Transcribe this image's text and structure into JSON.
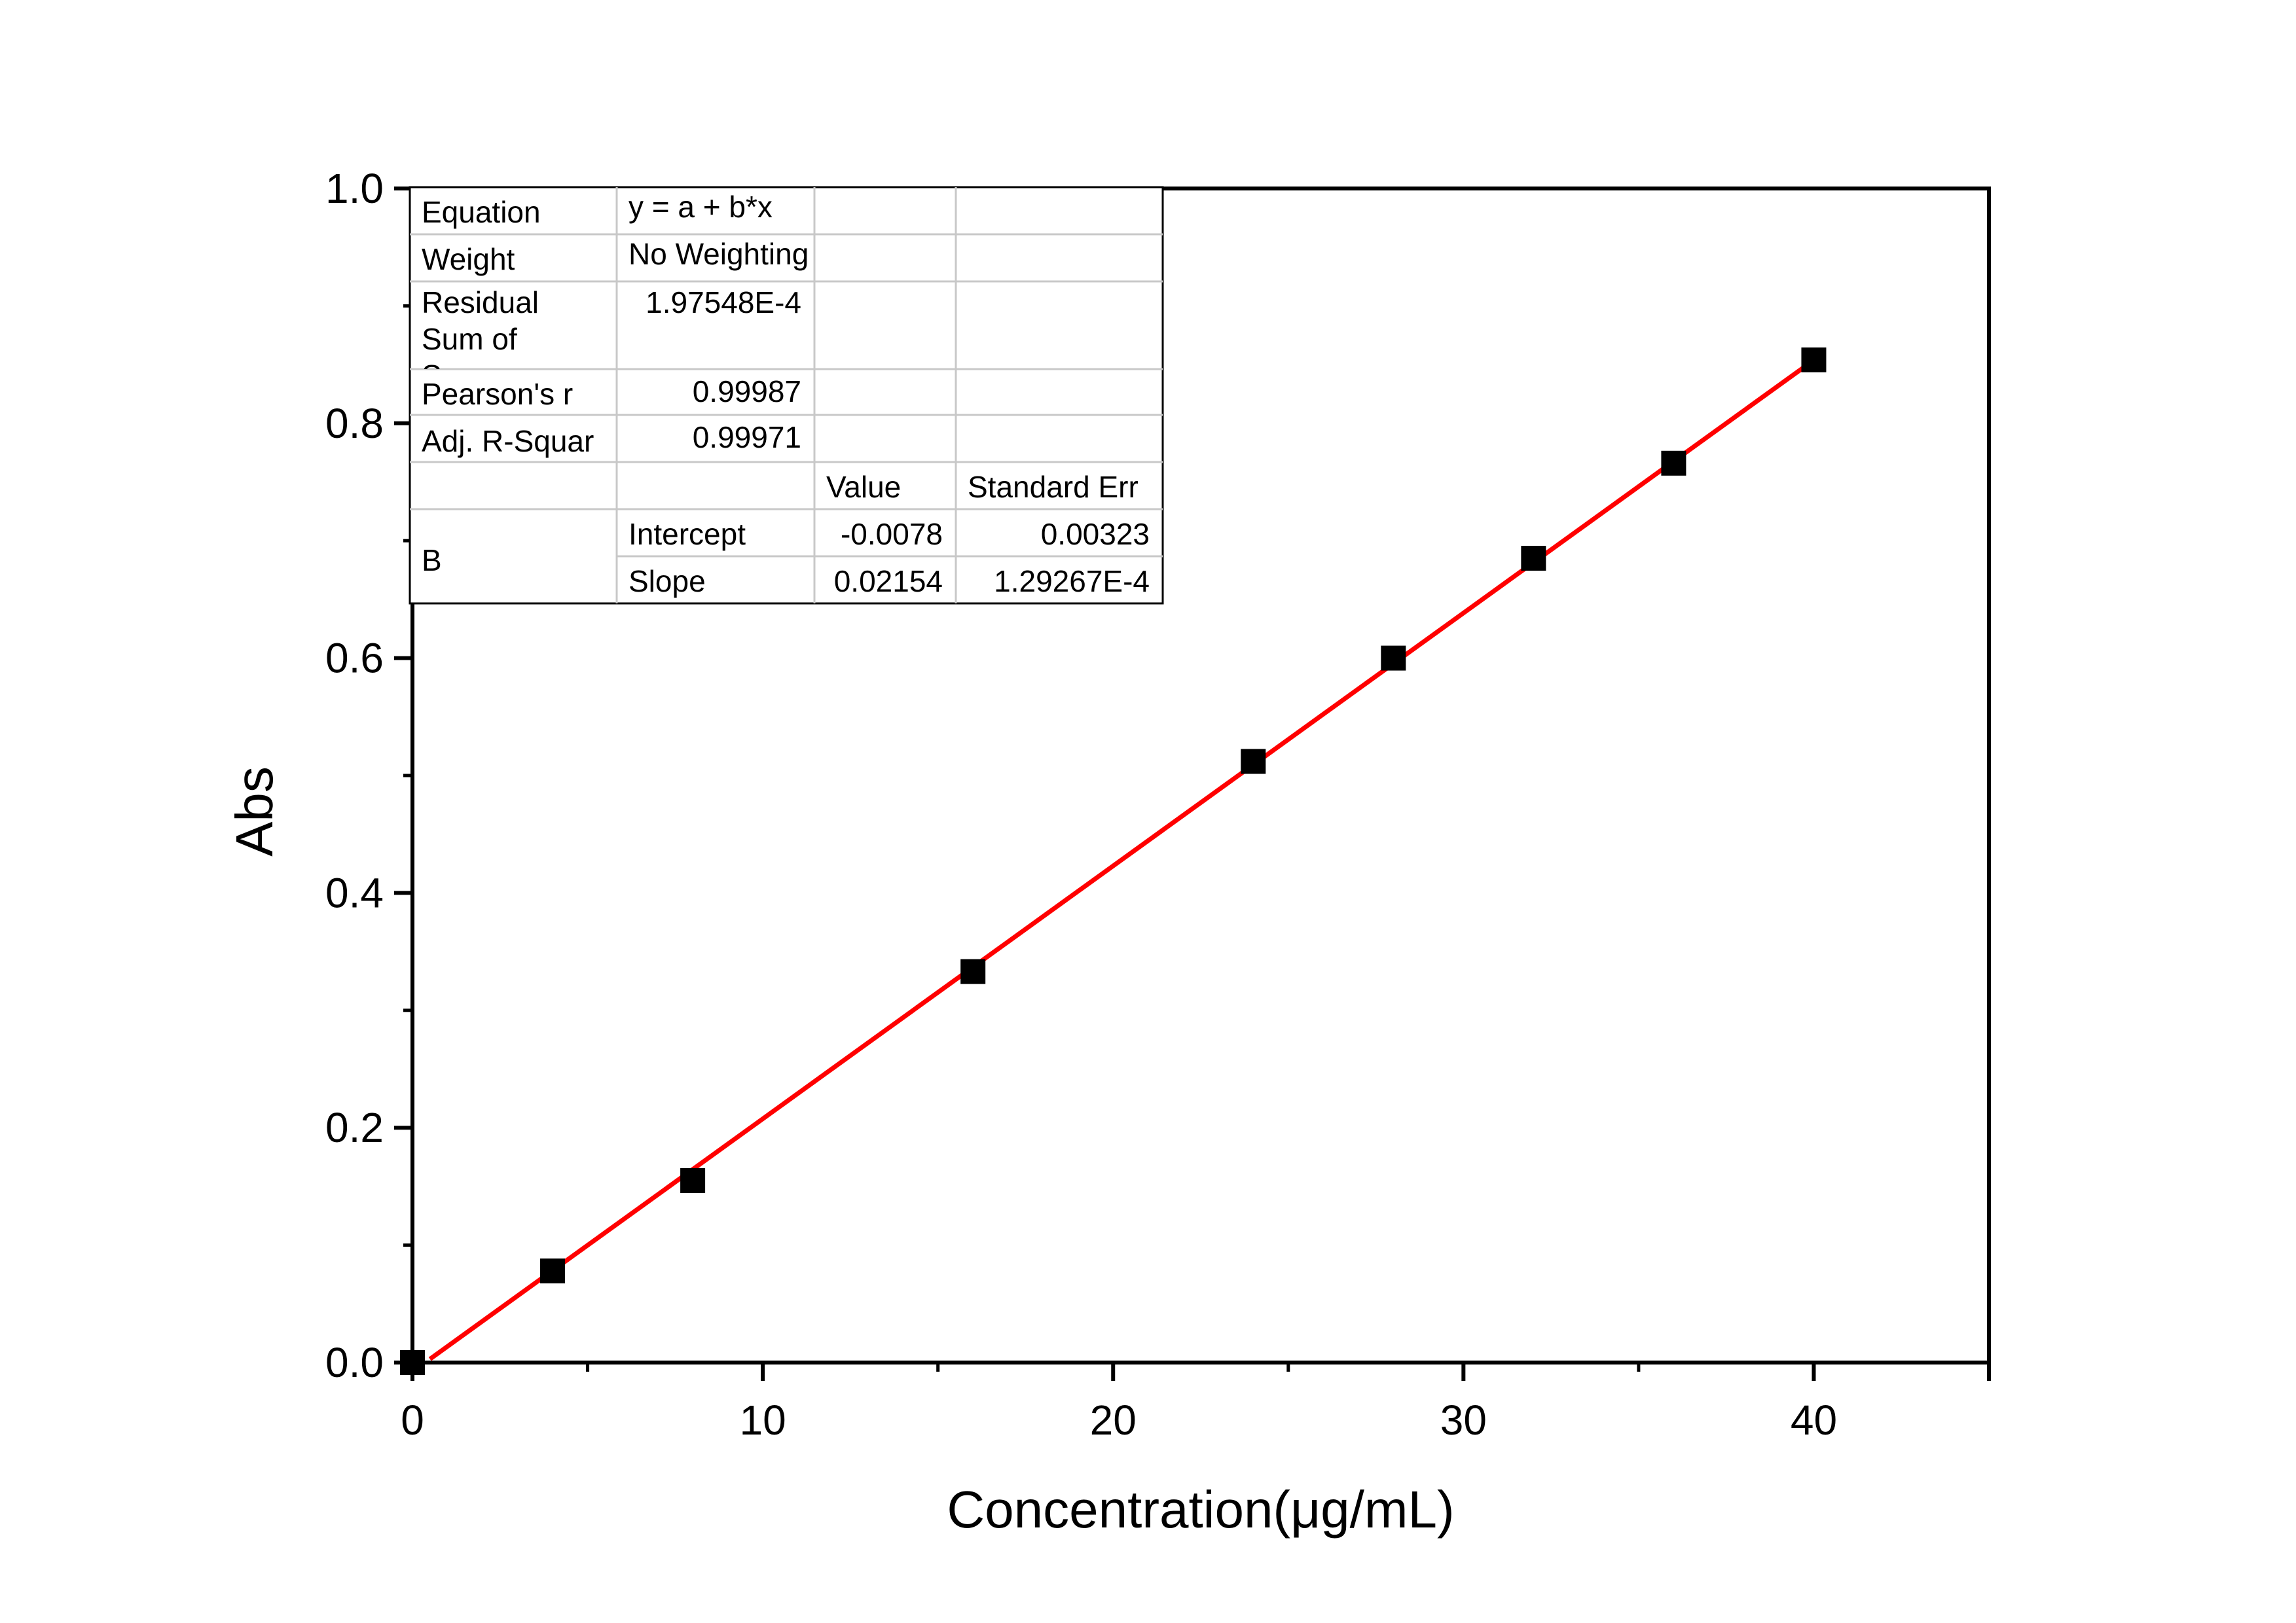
{
  "chart_data": {
    "type": "scatter",
    "xlabel": "Concentration(μg/mL)",
    "ylabel": "Abs",
    "xlim": [
      0,
      45
    ],
    "ylim": [
      0,
      1.0
    ],
    "xticks": [
      0,
      10,
      20,
      30,
      40
    ],
    "xtick_labels": [
      "0",
      "10",
      "20",
      "30",
      "40"
    ],
    "yticks": [
      0,
      0.2,
      0.4,
      0.6,
      0.8,
      1.0
    ],
    "ytick_labels": [
      "0.0",
      "0.2",
      "0.4",
      "0.6",
      "0.8",
      "1.0"
    ],
    "grid": false,
    "series": [
      {
        "marker": "square",
        "color": "#000000",
        "x": [
          0,
          4,
          8,
          16,
          24,
          28,
          32,
          36,
          40
        ],
        "y": [
          0.0,
          0.078,
          0.155,
          0.333,
          0.512,
          0.6,
          0.685,
          0.766,
          0.854
        ]
      }
    ],
    "fit_line": {
      "color": "#ff0000",
      "intercept": -0.0078,
      "slope": 0.02154,
      "x_range": [
        0.5,
        40
      ]
    },
    "fit_table": {
      "rows": [
        [
          "Equation",
          "y = a + b*x",
          "",
          ""
        ],
        [
          "Weight",
          "No Weighting",
          "",
          ""
        ],
        [
          "Residual Sum of Squares",
          "1.97548E-4",
          "",
          ""
        ],
        [
          "Pearson's r",
          "0.99987",
          "",
          ""
        ],
        [
          "Adj. R-Squar",
          "0.99971",
          "",
          ""
        ],
        [
          "",
          "",
          "Value",
          "Standard Err"
        ],
        [
          "B",
          "Intercept",
          "-0.0078",
          "0.00323"
        ],
        [
          "",
          "Slope",
          "0.02154",
          "1.29267E-4"
        ]
      ]
    }
  }
}
